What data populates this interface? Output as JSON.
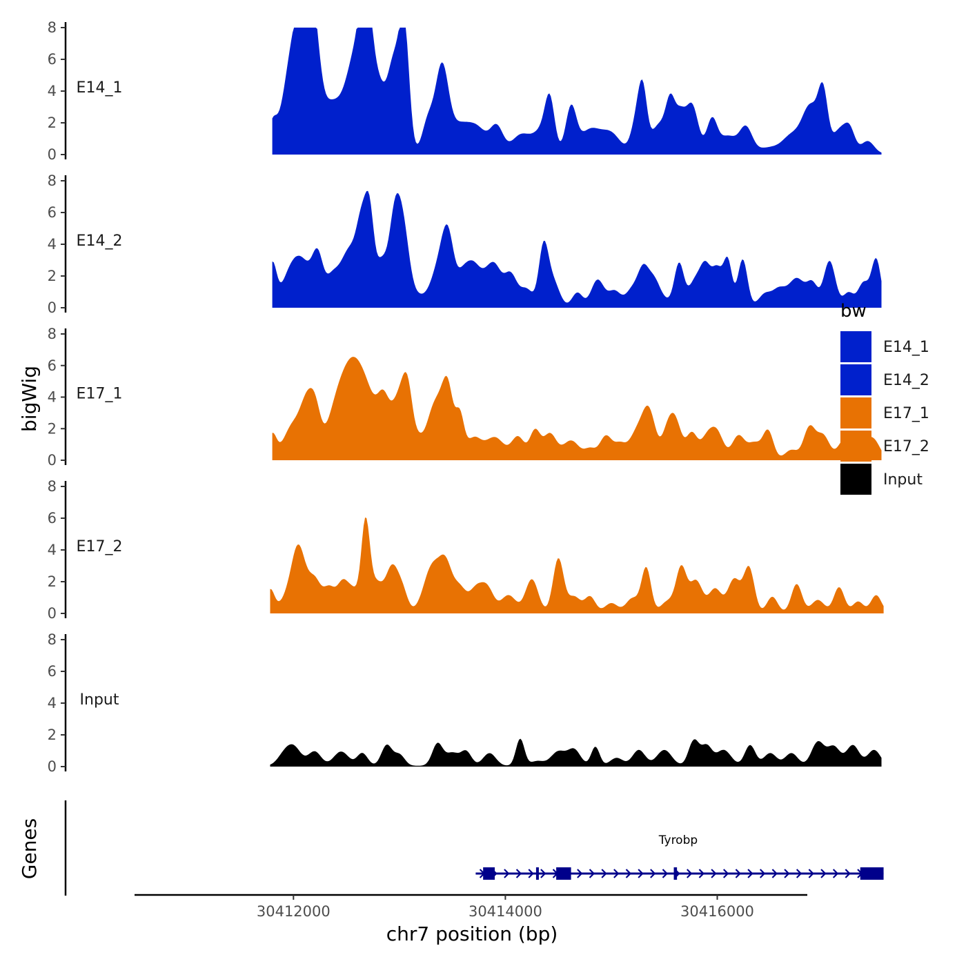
{
  "chart_data": {
    "type": "area",
    "ylabel": "bigWig",
    "xlabel": "chr7 position (bp)",
    "genes_label": "Genes",
    "xlim": [
      30410500,
      30416850
    ],
    "ylim": [
      0,
      8
    ],
    "y_ticks": [
      0,
      2,
      4,
      6,
      8
    ],
    "x_ticks": [
      {
        "value": 30412000,
        "label": "30412000"
      },
      {
        "value": 30414000,
        "label": "30414000"
      },
      {
        "value": 30416000,
        "label": "30416000"
      }
    ],
    "legend": {
      "title": "bw",
      "entries": [
        {
          "label": "E14_1",
          "color": "#0020cc"
        },
        {
          "label": "E14_2",
          "color": "#0020cc"
        },
        {
          "label": "E17_1",
          "color": "#e87203"
        },
        {
          "label": "E17_2",
          "color": "#e87203"
        },
        {
          "label": "Input",
          "color": "#000000"
        }
      ]
    },
    "tracks": [
      {
        "name": "E14_1",
        "color": "#0020cc",
        "x_start": 30411800,
        "x_end": 30417550,
        "peaks": [
          [
            30411800,
            1.5,
            40
          ],
          [
            30411950,
            2.4,
            90
          ],
          [
            30412050,
            6.4,
            90
          ],
          [
            30412130,
            4.0,
            60
          ],
          [
            30412200,
            5.3,
            60
          ],
          [
            30412330,
            1.5,
            70
          ],
          [
            30412470,
            2.8,
            120
          ],
          [
            30412600,
            4.5,
            80
          ],
          [
            30412690,
            7.9,
            55
          ],
          [
            30412800,
            3.4,
            55
          ],
          [
            30412950,
            5.9,
            70
          ],
          [
            30413050,
            6.5,
            45
          ],
          [
            30413270,
            2.0,
            55
          ],
          [
            30413400,
            4.9,
            60
          ],
          [
            30413560,
            1.8,
            120
          ],
          [
            30413750,
            1.2,
            90
          ],
          [
            30413920,
            1.6,
            60
          ],
          [
            30414150,
            1.2,
            90
          ],
          [
            30414350,
            1.4,
            80
          ],
          [
            30414420,
            2.8,
            45
          ],
          [
            30414620,
            2.8,
            50
          ],
          [
            30414800,
            1.5,
            100
          ],
          [
            30415000,
            1.2,
            90
          ],
          [
            30415250,
            2.4,
            55
          ],
          [
            30415300,
            2.8,
            40
          ],
          [
            30415450,
            1.8,
            70
          ],
          [
            30415560,
            3.0,
            45
          ],
          [
            30415650,
            2.0,
            45
          ],
          [
            30415760,
            3.1,
            60
          ],
          [
            30415950,
            2.1,
            50
          ],
          [
            30416100,
            1.1,
            80
          ],
          [
            30416270,
            1.6,
            60
          ],
          [
            30416500,
            0.4,
            120
          ],
          [
            30416700,
            1.0,
            80
          ],
          [
            30416880,
            3.0,
            80
          ],
          [
            30417000,
            3.4,
            45
          ],
          [
            30417150,
            1.4,
            60
          ],
          [
            30417250,
            1.5,
            50
          ],
          [
            30417420,
            0.8,
            60
          ]
        ]
      },
      {
        "name": "E14_2",
        "color": "#0020cc",
        "x_start": 30411800,
        "x_end": 30417550,
        "peaks": [
          [
            30411800,
            2.6,
            40
          ],
          [
            30411950,
            1.2,
            80
          ],
          [
            30412080,
            2.8,
            100
          ],
          [
            30412230,
            2.6,
            50
          ],
          [
            30412360,
            1.5,
            60
          ],
          [
            30412530,
            3.6,
            90
          ],
          [
            30412650,
            4.1,
            50
          ],
          [
            30412720,
            4.5,
            40
          ],
          [
            30412830,
            2.8,
            60
          ],
          [
            30412950,
            4.2,
            50
          ],
          [
            30413030,
            5.0,
            60
          ],
          [
            30413170,
            0.6,
            70
          ],
          [
            30413380,
            2.6,
            80
          ],
          [
            30413460,
            3.4,
            55
          ],
          [
            30413600,
            1.9,
            60
          ],
          [
            30413700,
            2.1,
            60
          ],
          [
            30413800,
            1.2,
            60
          ],
          [
            30413900,
            2.4,
            65
          ],
          [
            30414050,
            2.0,
            60
          ],
          [
            30414200,
            1.1,
            60
          ],
          [
            30414360,
            3.6,
            45
          ],
          [
            30414450,
            1.6,
            60
          ],
          [
            30414680,
            0.9,
            50
          ],
          [
            30414870,
            1.7,
            60
          ],
          [
            30415030,
            1.0,
            60
          ],
          [
            30415200,
            1.1,
            60
          ],
          [
            30415300,
            2.0,
            50
          ],
          [
            30415400,
            1.7,
            60
          ],
          [
            30415520,
            0.3,
            60
          ],
          [
            30415640,
            2.7,
            45
          ],
          [
            30415790,
            1.6,
            60
          ],
          [
            30415890,
            2.3,
            50
          ],
          [
            30416000,
            2.3,
            50
          ],
          [
            30416100,
            2.8,
            40
          ],
          [
            30416240,
            3.0,
            45
          ],
          [
            30416450,
            0.8,
            60
          ],
          [
            30416580,
            1.0,
            60
          ],
          [
            30416750,
            1.8,
            80
          ],
          [
            30416900,
            1.3,
            50
          ],
          [
            30417060,
            2.9,
            55
          ],
          [
            30417240,
            0.9,
            50
          ],
          [
            30417380,
            1.5,
            50
          ],
          [
            30417500,
            3.0,
            45
          ]
        ]
      },
      {
        "name": "E17_1",
        "color": "#e87203",
        "x_start": 30411800,
        "x_end": 30417550,
        "peaks": [
          [
            30411800,
            1.5,
            40
          ],
          [
            30412000,
            2.2,
            90
          ],
          [
            30412130,
            2.9,
            60
          ],
          [
            30412210,
            2.3,
            50
          ],
          [
            30412420,
            3.5,
            100
          ],
          [
            30412560,
            3.8,
            90
          ],
          [
            30412700,
            3.7,
            100
          ],
          [
            30412850,
            2.7,
            55
          ],
          [
            30412990,
            3.6,
            70
          ],
          [
            30413080,
            3.6,
            50
          ],
          [
            30413180,
            0.6,
            40
          ],
          [
            30413350,
            3.7,
            90
          ],
          [
            30413460,
            3.3,
            50
          ],
          [
            30413570,
            2.5,
            40
          ],
          [
            30413700,
            1.3,
            70
          ],
          [
            30413900,
            1.4,
            90
          ],
          [
            30414120,
            1.4,
            60
          ],
          [
            30414280,
            1.8,
            50
          ],
          [
            30414420,
            1.6,
            60
          ],
          [
            30414620,
            1.2,
            80
          ],
          [
            30414800,
            0.6,
            50
          ],
          [
            30414950,
            1.5,
            60
          ],
          [
            30415080,
            0.8,
            50
          ],
          [
            30415250,
            1.8,
            80
          ],
          [
            30415360,
            2.6,
            60
          ],
          [
            30415520,
            1.2,
            50
          ],
          [
            30415600,
            2.5,
            60
          ],
          [
            30415760,
            1.6,
            50
          ],
          [
            30415900,
            1.3,
            60
          ],
          [
            30416000,
            1.6,
            60
          ],
          [
            30416200,
            1.5,
            60
          ],
          [
            30416350,
            1.0,
            60
          ],
          [
            30416480,
            1.8,
            50
          ],
          [
            30416700,
            0.6,
            60
          ],
          [
            30416870,
            2.0,
            55
          ],
          [
            30417000,
            1.5,
            60
          ],
          [
            30417200,
            1.2,
            60
          ],
          [
            30417350,
            1.3,
            70
          ],
          [
            30417480,
            1.1,
            60
          ]
        ]
      },
      {
        "name": "E17_2",
        "color": "#e87203",
        "x_start": 30411780,
        "x_end": 30417570,
        "peaks": [
          [
            30411780,
            1.4,
            40
          ],
          [
            30411950,
            0.9,
            80
          ],
          [
            30412050,
            3.8,
            65
          ],
          [
            30412200,
            2.0,
            60
          ],
          [
            30412340,
            1.5,
            55
          ],
          [
            30412460,
            1.6,
            50
          ],
          [
            30412560,
            1.4,
            60
          ],
          [
            30412680,
            5.4,
            40
          ],
          [
            30412780,
            1.8,
            60
          ],
          [
            30412930,
            2.8,
            60
          ],
          [
            30413030,
            1.2,
            50
          ],
          [
            30413310,
            2.9,
            80
          ],
          [
            30413440,
            2.6,
            60
          ],
          [
            30413570,
            1.5,
            60
          ],
          [
            30413720,
            1.4,
            60
          ],
          [
            30413830,
            1.5,
            60
          ],
          [
            30414030,
            1.1,
            70
          ],
          [
            30414250,
            2.1,
            60
          ],
          [
            30414500,
            3.4,
            50
          ],
          [
            30414650,
            1.0,
            60
          ],
          [
            30414800,
            1.0,
            50
          ],
          [
            30415000,
            0.6,
            60
          ],
          [
            30415200,
            0.9,
            60
          ],
          [
            30415330,
            2.8,
            45
          ],
          [
            30415530,
            0.7,
            60
          ],
          [
            30415660,
            2.8,
            50
          ],
          [
            30415800,
            2.0,
            60
          ],
          [
            30415980,
            1.5,
            60
          ],
          [
            30416160,
            2.1,
            60
          ],
          [
            30416300,
            2.8,
            50
          ],
          [
            30416520,
            1.0,
            50
          ],
          [
            30416750,
            1.8,
            50
          ],
          [
            30416950,
            0.8,
            60
          ],
          [
            30417150,
            1.6,
            50
          ],
          [
            30417330,
            0.7,
            50
          ],
          [
            30417500,
            1.1,
            50
          ]
        ]
      },
      {
        "name": "Input",
        "color": "#000000",
        "x_start": 30411780,
        "x_end": 30417550,
        "peaks": [
          [
            30411900,
            0.5,
            60
          ],
          [
            30412000,
            1.2,
            70
          ],
          [
            30412200,
            0.9,
            60
          ],
          [
            30412450,
            0.9,
            70
          ],
          [
            30412650,
            0.8,
            50
          ],
          [
            30412880,
            1.3,
            50
          ],
          [
            30413000,
            0.7,
            50
          ],
          [
            30413360,
            1.4,
            50
          ],
          [
            30413500,
            0.8,
            60
          ],
          [
            30413630,
            0.9,
            50
          ],
          [
            30413850,
            0.8,
            60
          ],
          [
            30414140,
            1.7,
            40
          ],
          [
            30414300,
            0.3,
            60
          ],
          [
            30414500,
            0.9,
            70
          ],
          [
            30414650,
            1.0,
            60
          ],
          [
            30414850,
            1.2,
            40
          ],
          [
            30415050,
            0.5,
            60
          ],
          [
            30415260,
            1.0,
            60
          ],
          [
            30415500,
            1.0,
            70
          ],
          [
            30415780,
            1.6,
            50
          ],
          [
            30415900,
            1.2,
            50
          ],
          [
            30416060,
            1.0,
            70
          ],
          [
            30416310,
            1.3,
            50
          ],
          [
            30416500,
            0.8,
            60
          ],
          [
            30416700,
            0.8,
            60
          ],
          [
            30416950,
            1.5,
            60
          ],
          [
            30417100,
            1.2,
            60
          ],
          [
            30417280,
            1.3,
            60
          ],
          [
            30417480,
            1.0,
            60
          ]
        ]
      }
    ],
    "gene": {
      "name": "Tyrobp",
      "x_start": 30413720,
      "x_end": 30417570,
      "color": "#00008b",
      "exons": [
        [
          30413790,
          30413900
        ],
        [
          30414480,
          30414620
        ],
        [
          30414290,
          30414310
        ],
        [
          30415590,
          30415620
        ],
        [
          30417350,
          30417570
        ]
      ]
    }
  }
}
